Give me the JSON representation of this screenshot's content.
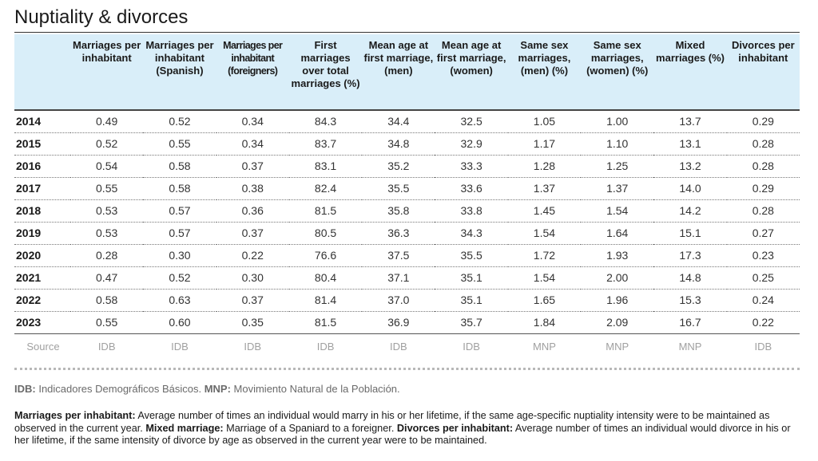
{
  "title": "Nuptiality & divorces",
  "table": {
    "headers": [
      "",
      "Marriages per inhabitant",
      "Marriages per inhabitant (Spanish)",
      "Marriages per inhabitant (foreigners)",
      "First marriages over total marriages (%)",
      "Mean age at first marriage, (men)",
      "Mean age at first marriage, (women)",
      "Same sex marriages, (men) (%)",
      "Same sex marriages, (women) (%)",
      "Mixed marriages (%)",
      "Divorces per inhabitant"
    ],
    "rows": [
      [
        "2014",
        "0.49",
        "0.52",
        "0.34",
        "84.3",
        "34.4",
        "32.5",
        "1.05",
        "1.00",
        "13.7",
        "0.29"
      ],
      [
        "2015",
        "0.52",
        "0.55",
        "0.34",
        "83.7",
        "34.8",
        "32.9",
        "1.17",
        "1.10",
        "13.1",
        "0.28"
      ],
      [
        "2016",
        "0.54",
        "0.58",
        "0.37",
        "83.1",
        "35.2",
        "33.3",
        "1.28",
        "1.25",
        "13.2",
        "0.28"
      ],
      [
        "2017",
        "0.55",
        "0.58",
        "0.38",
        "82.4",
        "35.5",
        "33.6",
        "1.37",
        "1.37",
        "14.0",
        "0.29"
      ],
      [
        "2018",
        "0.53",
        "0.57",
        "0.36",
        "81.5",
        "35.8",
        "33.8",
        "1.45",
        "1.54",
        "14.2",
        "0.28"
      ],
      [
        "2019",
        "0.53",
        "0.57",
        "0.37",
        "80.5",
        "36.3",
        "34.3",
        "1.54",
        "1.64",
        "15.1",
        "0.27"
      ],
      [
        "2020",
        "0.28",
        "0.30",
        "0.22",
        "76.6",
        "37.5",
        "35.5",
        "1.72",
        "1.93",
        "17.3",
        "0.23"
      ],
      [
        "2021",
        "0.47",
        "0.52",
        "0.30",
        "80.4",
        "37.1",
        "35.1",
        "1.54",
        "2.00",
        "14.8",
        "0.25"
      ],
      [
        "2022",
        "0.58",
        "0.63",
        "0.37",
        "81.4",
        "37.0",
        "35.1",
        "1.65",
        "1.96",
        "15.3",
        "0.24"
      ],
      [
        "2023",
        "0.55",
        "0.60",
        "0.35",
        "81.5",
        "36.9",
        "35.7",
        "1.84",
        "2.09",
        "16.7",
        "0.22"
      ]
    ],
    "source_row": [
      "Source",
      "IDB",
      "IDB",
      "IDB",
      "IDB",
      "IDB",
      "IDB",
      "MNP",
      "MNP",
      "MNP",
      "IDB"
    ]
  },
  "abbreviations": [
    {
      "term": "IDB:",
      "text": " Indicadores Demográficos Básicos. "
    },
    {
      "term": "MNP:",
      "text": " Movimiento Natural de la Población."
    }
  ],
  "definitions": [
    {
      "term": "Marriages per inhabitant:",
      "text": " Average number of times an individual would marry in his or her lifetime, if the same age-specific nuptiality intensity were to be maintained as observed in the current year. "
    },
    {
      "term": "Mixed marriage:",
      "text": " Marriage of a Spaniard to a foreigner. "
    },
    {
      "term": "Divorces per inhabitant:",
      "text": " Average number of times an individual would divorce in his or her lifetime, if the same intensity of divorce by age as observed in the current year were to be maintained."
    }
  ],
  "colors": {
    "header_bg": "#d9eef9",
    "source_text": "#a0a0a0",
    "note_text": "#6a6a6a"
  }
}
